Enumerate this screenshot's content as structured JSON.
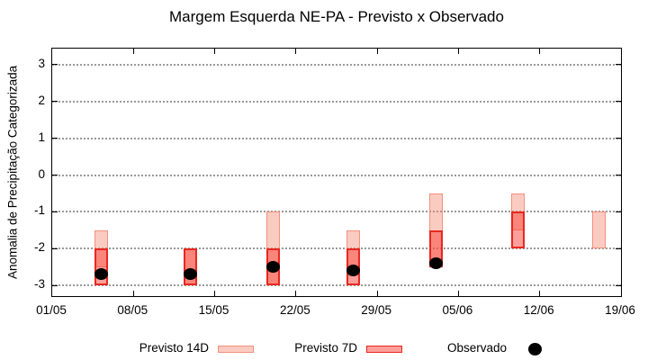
{
  "title": "Margem Esquerda NE-PA - Previsto x Observado",
  "chart_data": {
    "type": "range-bar",
    "title": "Margem Esquerda NE-PA - Previsto x Observado",
    "ylabel": "Anomalia de Precipitação Categorizada",
    "xlabel": "",
    "x_tick_labels": [
      "01/05",
      "08/05",
      "15/05",
      "22/05",
      "29/05",
      "05/06",
      "12/06",
      "19/06"
    ],
    "x_tick_days": [
      0,
      7,
      14,
      21,
      28,
      35,
      42,
      49
    ],
    "y_ticks": [
      3,
      2,
      1,
      0,
      -1,
      -2,
      -3
    ],
    "ylim": [
      -3.29,
      3.44
    ],
    "xlim_days": [
      0,
      49
    ],
    "grid": "horizontal-dotted",
    "series": [
      {
        "name": "Previsto 14D",
        "kind": "range-box"
      },
      {
        "name": "Previsto 7D",
        "kind": "range-box"
      },
      {
        "name": "Observado",
        "kind": "point"
      }
    ],
    "groups": [
      {
        "date": "05/05",
        "day": 4.25,
        "previsto_14d": [
          -1.5,
          -2.5
        ],
        "previsto_7d": [
          -2.0,
          -3.0
        ],
        "observado": -2.7
      },
      {
        "date": "12/05",
        "day": 11.9,
        "previsto_14d": [
          -2.0,
          -3.0
        ],
        "previsto_7d": [
          -2.0,
          -3.0
        ],
        "observado": -2.7
      },
      {
        "date": "20/05",
        "day": 19.0,
        "previsto_14d": [
          -1.0,
          -3.0
        ],
        "previsto_7d": [
          -2.0,
          -3.0
        ],
        "observado": -2.5
      },
      {
        "date": "27/05",
        "day": 25.9,
        "previsto_14d": [
          -1.5,
          -2.5
        ],
        "previsto_7d": [
          -2.0,
          -3.0
        ],
        "observado": -2.6
      },
      {
        "date": "03/06",
        "day": 33.1,
        "previsto_14d": [
          -0.5,
          -2.5
        ],
        "previsto_7d": [
          -1.5,
          -2.5
        ],
        "observado": -2.4
      },
      {
        "date": "10/06",
        "day": 40.15,
        "previsto_14d": [
          -0.5,
          -1.5
        ],
        "previsto_7d": [
          -1.0,
          -2.0
        ],
        "observado": null
      },
      {
        "date": "17/06",
        "day": 47.1,
        "previsto_14d": [
          -1.0,
          -2.0
        ],
        "previsto_7d": null,
        "observado": null
      }
    ],
    "legend": {
      "position": "below",
      "items": [
        {
          "label": "Previsto 14D",
          "type": "box",
          "swatch": "previsto_14d"
        },
        {
          "label": "Previsto 7D",
          "type": "box",
          "swatch": "previsto_7d"
        },
        {
          "label": "Observado",
          "type": "dot",
          "swatch": "observado"
        }
      ]
    },
    "colors": {
      "previsto_14d_fill": "rgba(242,125,100,0.4)",
      "previsto_14d_border": "#f2907e",
      "previsto_7d_fill": "rgba(247,64,54,0.5)",
      "previsto_7d_border": "#e82820",
      "observado": "#000000",
      "grid": "#999999",
      "axis": "#000000",
      "background": "#ffffff"
    }
  }
}
